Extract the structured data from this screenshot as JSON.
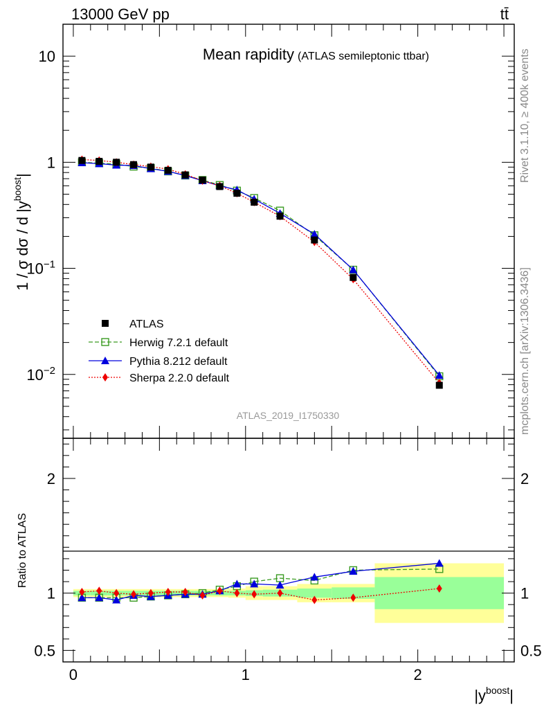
{
  "header": {
    "energy_label": "13000 GeV pp",
    "process_label": "tt̄"
  },
  "side_labels": {
    "rivet": "Rivet 3.1.10, ≥ 400k events",
    "mcplots": "mcplots.cern.ch [arXiv:1306.3436]"
  },
  "chart_data": [
    {
      "type": "line",
      "title": "Mean rapidity",
      "subtitle": "(ATLAS semileptonic ttbar)",
      "analysis_label": "ATLAS_2019_I1750330",
      "ylabel": "1 / σ dσ / d |y^boost|",
      "yscale": "log",
      "ylim": [
        0.0025,
        20
      ],
      "xlim": [
        -0.06,
        2.56
      ],
      "y_ticks": [
        0.01,
        0.1,
        1,
        10
      ],
      "y_tick_labels": [
        {
          "mantissa": "10",
          "exp": "−2"
        },
        {
          "mantissa": "10",
          "exp": "−1"
        },
        {
          "mantissa": "1",
          "exp": ""
        },
        {
          "mantissa": "10",
          "exp": ""
        }
      ],
      "x": [
        0.05,
        0.15,
        0.25,
        0.35,
        0.45,
        0.55,
        0.65,
        0.75,
        0.85,
        0.95,
        1.05,
        1.2,
        1.4,
        1.625,
        2.125
      ],
      "bin_edges": [
        0,
        0.1,
        0.2,
        0.3,
        0.4,
        0.5,
        0.6,
        0.7,
        0.8,
        0.9,
        1.0,
        1.1,
        1.3,
        1.5,
        1.75,
        2.5
      ],
      "series": [
        {
          "name": "ATLAS",
          "values": [
            1.04,
            1.02,
            1.0,
            0.95,
            0.9,
            0.84,
            0.76,
            0.68,
            0.59,
            0.51,
            0.42,
            0.31,
            0.185,
            0.082,
            0.0079
          ]
        },
        {
          "name": "Herwig 7.2.1 default",
          "values": [
            1.0,
            0.98,
            0.96,
            0.91,
            0.88,
            0.82,
            0.75,
            0.68,
            0.61,
            0.54,
            0.46,
            0.35,
            0.205,
            0.097,
            0.0096
          ]
        },
        {
          "name": "Pythia 8.212 default",
          "values": [
            0.99,
            0.97,
            0.94,
            0.93,
            0.87,
            0.82,
            0.75,
            0.67,
            0.6,
            0.55,
            0.45,
            0.33,
            0.21,
            0.097,
            0.0098
          ]
        },
        {
          "name": "Sherpa 2.2.0 default",
          "values": [
            1.06,
            1.04,
            1.0,
            0.95,
            0.91,
            0.86,
            0.77,
            0.67,
            0.6,
            0.51,
            0.42,
            0.31,
            0.177,
            0.079,
            0.0083
          ]
        }
      ],
      "legend_position": "bottom-left"
    },
    {
      "type": "line",
      "ylabel": "Ratio to ATLAS",
      "xlabel": "|y^boost|",
      "ylim": [
        0.4,
        2.35
      ],
      "y_ticks": [
        0.5,
        1,
        2
      ],
      "y_tick_labels": [
        "0.5",
        "1",
        "2"
      ],
      "x_ticks": [
        0,
        1,
        2
      ],
      "x_tick_labels": [
        "0",
        "1",
        "2"
      ],
      "bin_edges": [
        0,
        0.1,
        0.2,
        0.3,
        0.4,
        0.5,
        0.6,
        0.7,
        0.8,
        0.9,
        1.0,
        1.1,
        1.3,
        1.5,
        1.75,
        2.5
      ],
      "band_stat": [
        0.02,
        0.02,
        0.02,
        0.02,
        0.02,
        0.02,
        0.02,
        0.02,
        0.02,
        0.02,
        0.025,
        0.03,
        0.04,
        0.05,
        0.14
      ],
      "band_total": [
        0.035,
        0.035,
        0.035,
        0.035,
        0.035,
        0.035,
        0.035,
        0.035,
        0.035,
        0.04,
        0.06,
        0.06,
        0.08,
        0.08,
        0.26
      ],
      "x": [
        0.05,
        0.15,
        0.25,
        0.35,
        0.45,
        0.55,
        0.65,
        0.75,
        0.85,
        0.95,
        1.05,
        1.2,
        1.4,
        1.625,
        2.125
      ],
      "series": [
        {
          "name": "Herwig 7.2.1 default",
          "values": [
            0.96,
            0.96,
            0.96,
            0.96,
            0.97,
            0.98,
            0.99,
            1.0,
            1.03,
            1.06,
            1.1,
            1.13,
            1.11,
            1.2,
            1.21
          ]
        },
        {
          "name": "Pythia 8.212 default",
          "values": [
            0.96,
            0.96,
            0.94,
            0.98,
            0.97,
            0.98,
            0.99,
            0.99,
            1.02,
            1.08,
            1.08,
            1.07,
            1.14,
            1.19,
            1.26
          ]
        },
        {
          "name": "Sherpa 2.2.0 default",
          "values": [
            1.01,
            1.02,
            1.0,
            0.99,
            1.0,
            1.01,
            1.01,
            0.98,
            1.02,
            1.0,
            0.99,
            1.0,
            0.94,
            0.96,
            1.04
          ]
        }
      ]
    }
  ],
  "colors": {
    "herwig": "#3a9b22",
    "pythia": "#0000dd",
    "sherpa": "#ee0000",
    "data": "#000000",
    "band_stat": "#99ff99",
    "band_total": "#ffff99"
  }
}
